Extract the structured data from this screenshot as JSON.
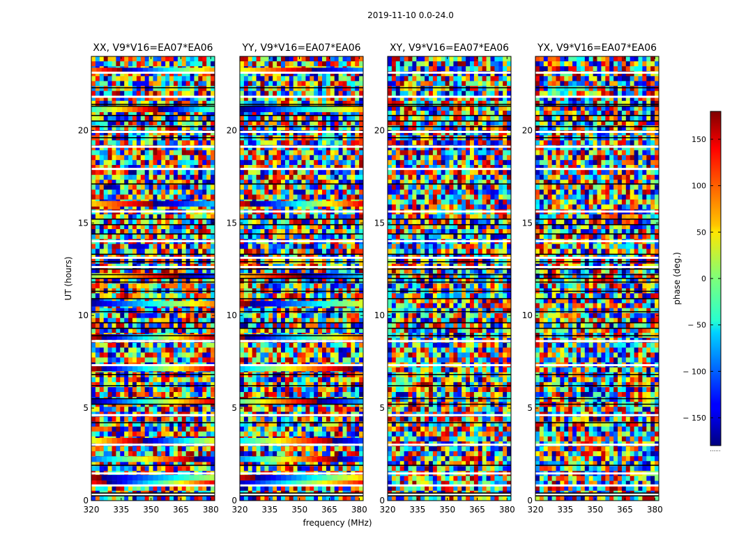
{
  "chart_data": {
    "type": "heatmap",
    "suptitle": "2019-11-10 0.0-24.0",
    "xlabel": "frequency (MHz)",
    "ylabel": "UT (hours)",
    "xlim": [
      320,
      382
    ],
    "ylim": [
      0,
      24
    ],
    "xticks": [
      320,
      335,
      350,
      365,
      380
    ],
    "yticks": [
      0,
      5,
      10,
      15,
      20
    ],
    "colormap": "jet",
    "colorbar": {
      "label": "phase (deg.)",
      "range": [
        -180,
        180
      ],
      "ticks": [
        150,
        100,
        50,
        0,
        -50,
        -100,
        -150
      ],
      "tick_labels": [
        "150",
        "100",
        "50",
        "0",
        "− 50",
        "− 100",
        "− 150"
      ],
      "footer": "......"
    },
    "panels": [
      {
        "title": "XX, V9*V16=EA07*EA06",
        "coherent_hours": [
          0.9,
          1.2,
          2.2,
          3.2,
          5.3,
          7.1,
          8.8,
          10.6,
          12.1,
          16.0,
          21.1,
          23.2
        ]
      },
      {
        "title": "YY, V9*V16=EA07*EA06",
        "coherent_hours": [
          0.9,
          1.2,
          2.2,
          3.2,
          5.3,
          7.1,
          8.8,
          10.6,
          12.1,
          16.0,
          21.1,
          23.2
        ]
      },
      {
        "title": "XY, V9*V16=EA07*EA06",
        "coherent_hours": []
      },
      {
        "title": "YX, V9*V16=EA07*EA06",
        "coherent_hours": []
      }
    ],
    "white_gap_hours": [
      0.3,
      0.8,
      1.45,
      3.0,
      4.6,
      7.3,
      8.6,
      12.6,
      13.1,
      14.0,
      15.6,
      17.9,
      19.1,
      19.9,
      21.8,
      23.1
    ],
    "black_line_hours": [
      0.25,
      0.4,
      1.9,
      4.2,
      5.2,
      5.5,
      6.2,
      6.8,
      8.9,
      9.3,
      9.6,
      10.2,
      10.9,
      11.3,
      11.8,
      12.0,
      12.2,
      12.5,
      12.9,
      13.3,
      14.4,
      14.9,
      15.2,
      17.1,
      19.6,
      20.2,
      20.5,
      20.8,
      21.3,
      21.4,
      22.3
    ]
  }
}
